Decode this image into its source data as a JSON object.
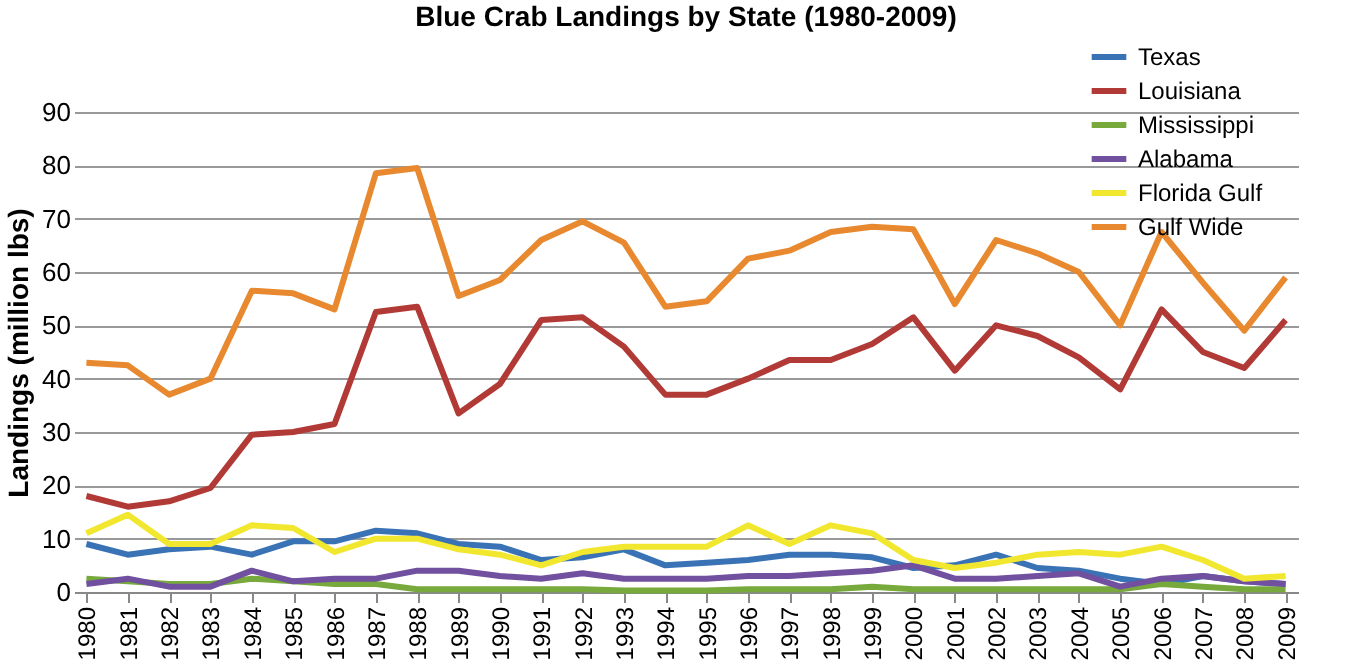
{
  "chart_data": {
    "type": "line",
    "title": "Blue Crab Landings by State (1980-2009)",
    "ylabel": "Landings (million lbs)",
    "categories": [
      "1980",
      "1981",
      "1982",
      "1983",
      "1984",
      "1985",
      "1986",
      "1987",
      "1988",
      "1989",
      "1990",
      "1991",
      "1992",
      "1993",
      "1994",
      "1995",
      "1996",
      "1997",
      "1998",
      "1999",
      "2000",
      "2001",
      "2002",
      "2003",
      "2004",
      "2005",
      "2006",
      "2007",
      "2008",
      "2009"
    ],
    "series": [
      {
        "name": "Texas",
        "color": "#3a73b5",
        "values": [
          9,
          7,
          8,
          8.5,
          7,
          9.5,
          9.5,
          11.5,
          11,
          9,
          8.5,
          6,
          6.5,
          8,
          5,
          5.5,
          6,
          7,
          7,
          6.5,
          4.5,
          5,
          7,
          4.5,
          4,
          2.5,
          1.5,
          3,
          2,
          1.5
        ]
      },
      {
        "name": "Louisiana",
        "color": "#b23a36",
        "values": [
          18,
          16,
          17,
          19.5,
          29.5,
          30,
          31.5,
          52.5,
          53.5,
          33.5,
          39,
          51,
          51.5,
          46,
          37,
          37,
          40,
          43.5,
          43.5,
          46.5,
          51.5,
          41.5,
          50,
          48,
          44,
          38,
          53,
          45,
          42,
          51
        ]
      },
      {
        "name": "Mississippi",
        "color": "#77a93c",
        "values": [
          2.5,
          2,
          1.5,
          1.5,
          2.5,
          2,
          1.5,
          1.5,
          0.5,
          0.5,
          0.5,
          0.5,
          0.5,
          0.3,
          0.3,
          0.3,
          0.5,
          0.5,
          0.5,
          1,
          0.5,
          0.5,
          0.5,
          0.5,
          0.5,
          0.5,
          1.5,
          1,
          0.5,
          0.5
        ]
      },
      {
        "name": "Alabama",
        "color": "#7150a0",
        "values": [
          1.5,
          2.5,
          1,
          1,
          4,
          2,
          2.5,
          2.5,
          4,
          4,
          3,
          2.5,
          3.5,
          2.5,
          2.5,
          2.5,
          3,
          3,
          3.5,
          4,
          5,
          2.5,
          2.5,
          3,
          3.5,
          1,
          2.5,
          3,
          2,
          1.5
        ]
      },
      {
        "name": "Florida Gulf",
        "color": "#f2e72f",
        "values": [
          11,
          14.5,
          9,
          9,
          12.5,
          12,
          7.5,
          10,
          10,
          8,
          7,
          5,
          7.5,
          8.5,
          8.5,
          8.5,
          12.5,
          9,
          12.5,
          11,
          6,
          4.5,
          5.5,
          7,
          7.5,
          7,
          8.5,
          6,
          2.5,
          3
        ]
      },
      {
        "name": "Gulf Wide",
        "color": "#e8892f",
        "values": [
          43,
          42.5,
          37,
          40,
          56.5,
          56,
          53,
          78.5,
          79.5,
          55.5,
          58.5,
          66,
          69.5,
          65.5,
          53.5,
          54.5,
          62.5,
          64,
          67.5,
          68.5,
          68,
          54,
          66,
          63.5,
          60,
          50,
          67.5,
          58,
          49,
          59
        ]
      }
    ],
    "ylim": [
      0,
      90
    ],
    "yticks": [
      0,
      10,
      20,
      30,
      40,
      50,
      60,
      70,
      80,
      90
    ],
    "grid": "y",
    "legend": "top right",
    "marker": "none",
    "line_style": "solid"
  }
}
